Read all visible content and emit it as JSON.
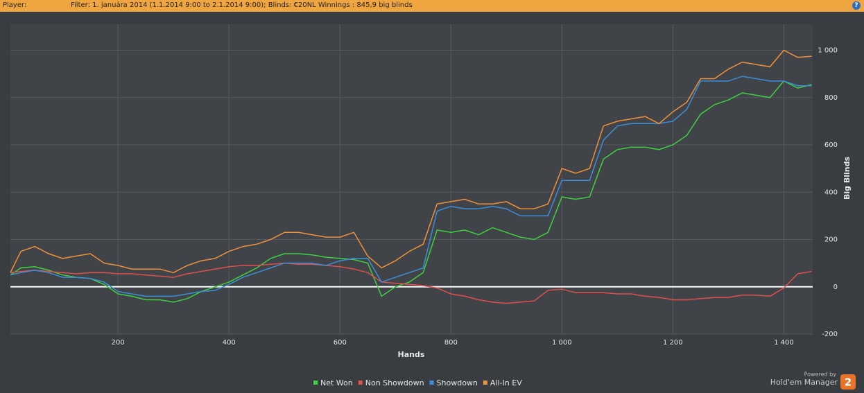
{
  "header": {
    "player_label": "Player:",
    "filter": "Filter: 1. januára 2014 (1.1.2014 9:00 to 2.1.2014 9:00); Blinds: €20NL Winnings : 845,9 big blinds",
    "help": "?"
  },
  "branding": {
    "powered_by": "Powered by",
    "product": "Hold'em Manager",
    "version": "2"
  },
  "chart_data": {
    "type": "line",
    "x_label": "Hands",
    "y_label": "Big Blinds",
    "grid": true,
    "zero_line": true,
    "legend": "bottom",
    "xlim": [
      6,
      1452
    ],
    "ylim": [
      -200,
      1110
    ],
    "xticks": [
      200,
      400,
      600,
      800,
      {
        "value": 1000,
        "label": "1 000"
      },
      {
        "value": 1200,
        "label": "1 200"
      },
      {
        "value": 1400,
        "label": "1 400"
      }
    ],
    "yticks": [
      -200,
      0,
      200,
      400,
      600,
      800,
      {
        "value": 1000,
        "label": "1 000"
      }
    ],
    "x": [
      6,
      25,
      50,
      75,
      100,
      125,
      150,
      175,
      200,
      225,
      250,
      275,
      300,
      325,
      350,
      375,
      400,
      425,
      450,
      475,
      500,
      525,
      550,
      575,
      600,
      625,
      650,
      675,
      700,
      725,
      750,
      775,
      800,
      825,
      850,
      875,
      900,
      925,
      950,
      975,
      1000,
      1025,
      1050,
      1075,
      1100,
      1125,
      1150,
      1175,
      1200,
      1225,
      1250,
      1275,
      1300,
      1325,
      1350,
      1375,
      1400,
      1425,
      1450
    ],
    "series": [
      {
        "name": "Net Won",
        "color": "#3fd13f",
        "values": [
          50,
          80,
          85,
          70,
          50,
          40,
          35,
          10,
          -30,
          -40,
          -55,
          -55,
          -65,
          -50,
          -20,
          0,
          20,
          50,
          80,
          120,
          140,
          140,
          135,
          125,
          120,
          115,
          100,
          -40,
          0,
          20,
          60,
          240,
          230,
          240,
          220,
          250,
          230,
          210,
          200,
          230,
          380,
          370,
          380,
          540,
          580,
          590,
          590,
          580,
          600,
          640,
          730,
          770,
          790,
          820,
          810,
          800,
          870,
          840,
          855
        ]
      },
      {
        "name": "Non Showdown",
        "color": "#e0504a",
        "values": [
          60,
          65,
          70,
          65,
          60,
          55,
          60,
          60,
          55,
          55,
          50,
          45,
          40,
          55,
          65,
          75,
          85,
          90,
          90,
          95,
          100,
          95,
          95,
          90,
          85,
          75,
          60,
          20,
          15,
          10,
          5,
          -5,
          -30,
          -40,
          -55,
          -65,
          -70,
          -65,
          -60,
          -15,
          -10,
          -25,
          -25,
          -25,
          -30,
          -30,
          -40,
          -45,
          -55,
          -55,
          -50,
          -45,
          -45,
          -35,
          -35,
          -40,
          -5,
          55,
          65
        ]
      },
      {
        "name": "Showdown",
        "color": "#3b8fd9",
        "values": [
          50,
          60,
          70,
          60,
          40,
          40,
          35,
          20,
          -20,
          -30,
          -40,
          -40,
          -40,
          -30,
          -20,
          -15,
          10,
          40,
          60,
          80,
          100,
          100,
          100,
          90,
          110,
          120,
          120,
          20,
          40,
          60,
          80,
          320,
          340,
          330,
          330,
          340,
          330,
          300,
          300,
          300,
          450,
          450,
          450,
          620,
          680,
          690,
          690,
          690,
          700,
          750,
          870,
          870,
          870,
          890,
          880,
          870,
          870,
          850,
          850
        ]
      },
      {
        "name": "All-In EV",
        "color": "#f0923a",
        "values": [
          60,
          150,
          170,
          140,
          120,
          130,
          140,
          100,
          90,
          75,
          75,
          75,
          60,
          90,
          110,
          120,
          150,
          170,
          180,
          200,
          230,
          230,
          220,
          210,
          210,
          230,
          130,
          80,
          110,
          150,
          180,
          350,
          360,
          370,
          350,
          350,
          360,
          330,
          330,
          350,
          500,
          480,
          500,
          680,
          700,
          710,
          720,
          690,
          740,
          780,
          880,
          880,
          920,
          950,
          940,
          930,
          1000,
          970,
          975
        ]
      }
    ]
  }
}
